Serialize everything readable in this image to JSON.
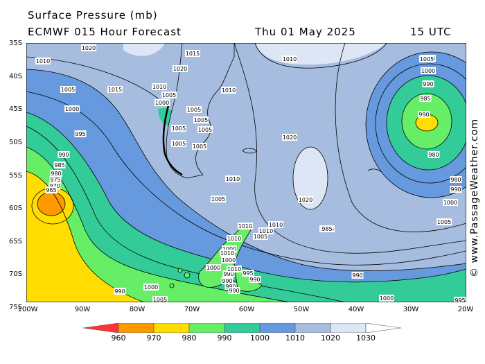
{
  "header": {
    "title": "Surface Pressure (mb)",
    "model": "ECMWF 015 Hour Forecast",
    "date": "Thu 01 May 2025",
    "time": "15 UTC"
  },
  "credit": "© www.PassageWeather.com",
  "axes": {
    "lat_labels": [
      "35S",
      "40S",
      "45S",
      "50S",
      "55S",
      "60S",
      "65S",
      "70S",
      "75S"
    ],
    "lon_labels": [
      "100W",
      "90W",
      "80W",
      "70W",
      "60W",
      "50W",
      "40W",
      "30W",
      "20W"
    ]
  },
  "legend": {
    "ticks": [
      "960",
      "970",
      "980",
      "990",
      "1000",
      "1010",
      "1020",
      "1030"
    ],
    "colors": [
      "#ff3333",
      "#ff9900",
      "#ffdd00",
      "#66ee66",
      "#33cc99",
      "#6699dd",
      "#a6bde0",
      "#dde6f4",
      "#ffffff"
    ]
  },
  "isobar_labels": [
    "1020",
    "1015",
    "1010",
    "1020",
    "1010",
    "1005",
    "1015",
    "1010",
    "1005",
    "1000",
    "1010",
    "1005",
    "1005",
    "1000",
    "1005",
    "1005",
    "995",
    "990",
    "1005",
    "1005",
    "1020",
    "985",
    "980",
    "975",
    "970",
    "965",
    "1010",
    "1020",
    "1005",
    "1010",
    "1010",
    "1015",
    "1005",
    "1010",
    "1000",
    "1010",
    "1000",
    "1000",
    "995",
    "990",
    "990",
    "990",
    "990",
    "1010",
    "1005",
    "1000",
    "990",
    "985",
    "990",
    "980",
    "990",
    "990",
    "1000",
    "1005",
    "1000",
    "995",
    "990",
    "985",
    "980",
    "990",
    "1000",
    "1005",
    "1010",
    "1010",
    "990"
  ]
}
